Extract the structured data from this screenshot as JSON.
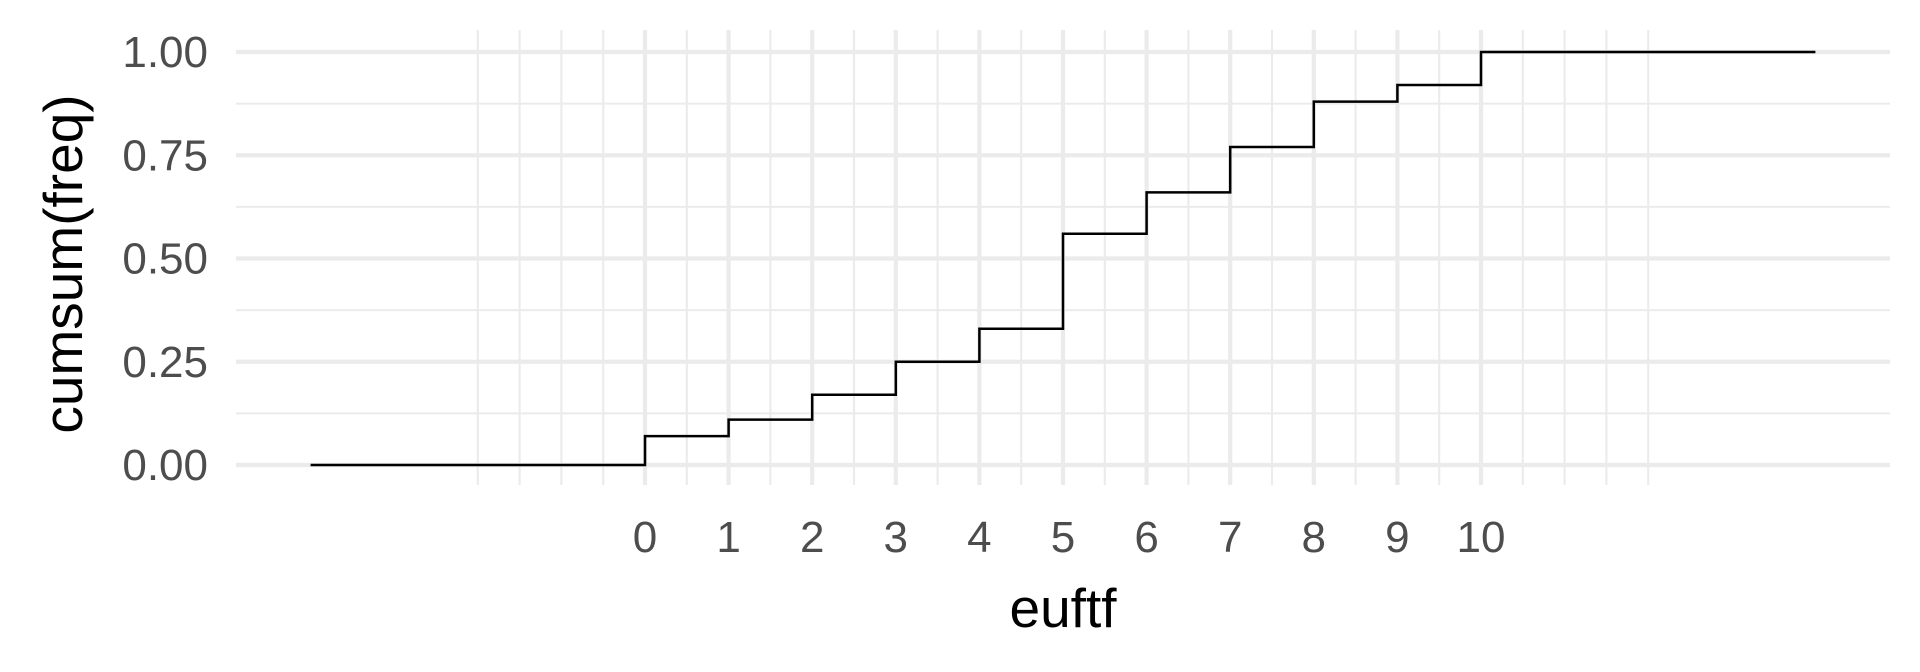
{
  "chart_data": {
    "type": "line",
    "subtype": "step",
    "xlabel": "euftf",
    "ylabel": "cumsum(freq)",
    "x_ticks": [
      "0",
      "1",
      "2",
      "3",
      "4",
      "5",
      "6",
      "7",
      "8",
      "9",
      "10"
    ],
    "y_ticks": [
      "0.00",
      "0.25",
      "0.50",
      "0.75",
      "1.00"
    ],
    "xlim": [
      -4,
      14
    ],
    "ylim": [
      0,
      1
    ],
    "grid": true,
    "legend": "none",
    "line_color": "#000000",
    "series": [
      {
        "x": [
          -4,
          0,
          1,
          2,
          3,
          4,
          5,
          6,
          7,
          8,
          9,
          10,
          14
        ],
        "values": [
          0.0,
          0.07,
          0.11,
          0.17,
          0.25,
          0.33,
          0.56,
          0.66,
          0.77,
          0.88,
          0.92,
          1.0,
          1.0
        ]
      }
    ]
  }
}
